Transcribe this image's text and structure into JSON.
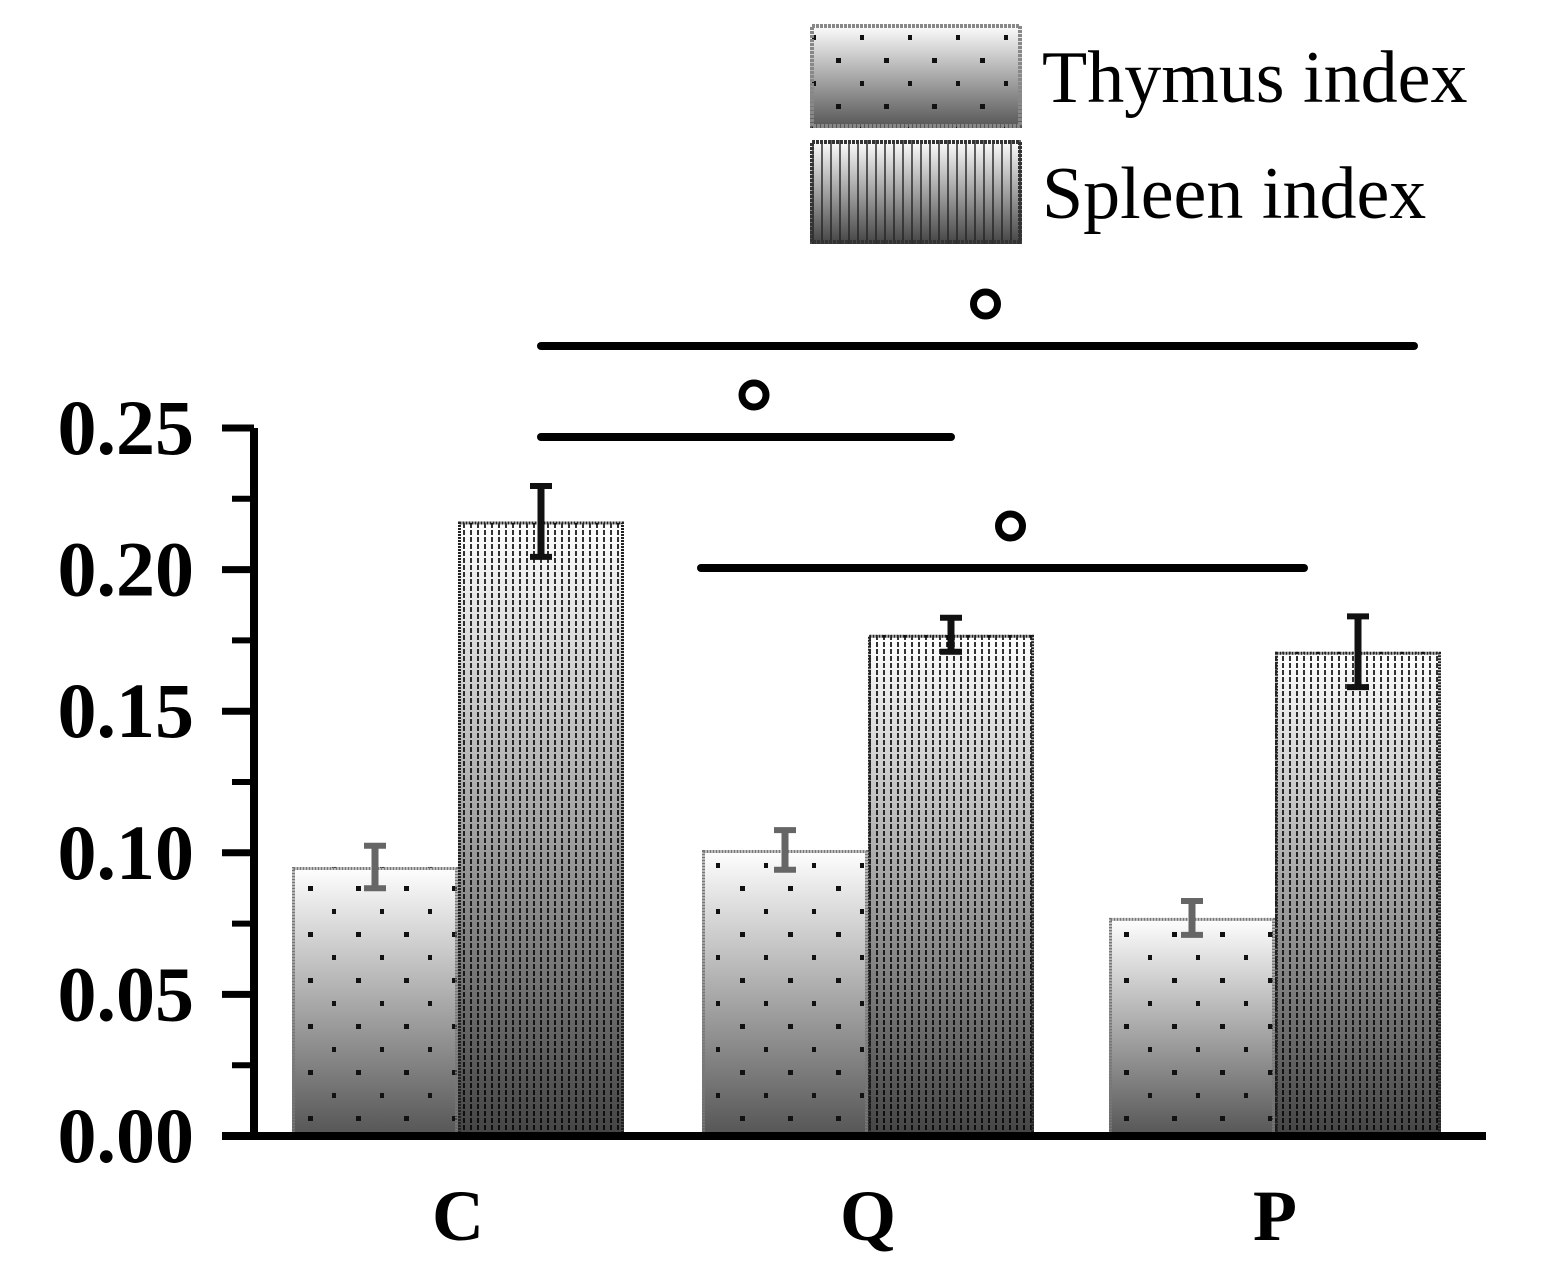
{
  "chart_data": {
    "type": "bar",
    "title": "",
    "xlabel": "",
    "ylabel": "",
    "ylim": [
      0,
      0.25
    ],
    "yticks": [
      "0.00",
      "0.05",
      "0.10",
      "0.15",
      "0.20",
      "0.25"
    ],
    "ytick_values": [
      0,
      0.05,
      0.1,
      0.15,
      0.2,
      0.25
    ],
    "categories": [
      "C",
      "Q",
      "P"
    ],
    "series": [
      {
        "name": "Thymus index",
        "values": [
          0.095,
          0.101,
          0.077
        ],
        "errors": [
          0.0075,
          0.007,
          0.006
        ]
      },
      {
        "name": "Spleen index",
        "values": [
          0.217,
          0.177,
          0.171
        ],
        "errors": [
          0.0125,
          0.006,
          0.0125
        ]
      }
    ],
    "significance": [
      {
        "from": "C",
        "to": "P",
        "series": "Spleen index",
        "marker": "°",
        "level": 3
      },
      {
        "from": "C",
        "to": "Q",
        "series": "Spleen index",
        "marker": "°",
        "level": 2
      },
      {
        "from": "Q",
        "to": "P",
        "series": "Thymus index",
        "marker": "°",
        "level": 1
      }
    ],
    "legend_position": "top-right",
    "grid": false
  }
}
